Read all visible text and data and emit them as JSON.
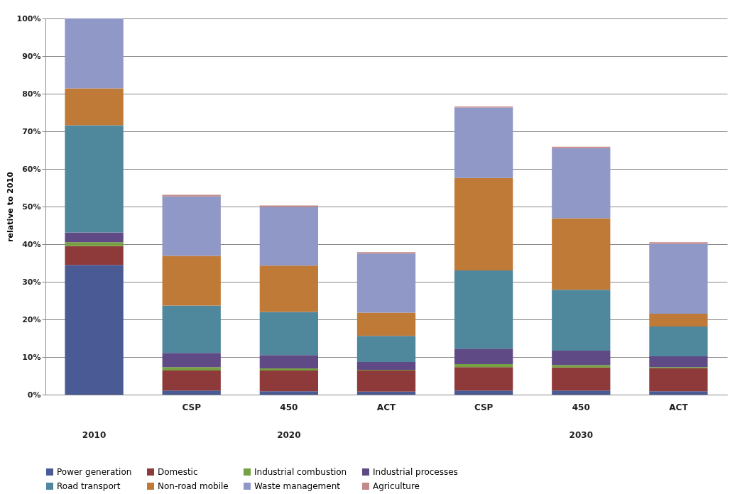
{
  "chart_data": {
    "type": "bar",
    "stacked": true,
    "ylabel": "relative to 2010",
    "categories": [
      null,
      "CSP",
      "450",
      "ACT",
      "CSP",
      "450",
      "ACT"
    ],
    "annotations": [
      "2010",
      "2020",
      "2030"
    ],
    "series": [
      {
        "name": "Power generation",
        "color": "#4a5a94",
        "values": [
          34.5,
          1.1,
          0.9,
          0.8,
          1.1,
          1.1,
          0.9
        ]
      },
      {
        "name": "Domestic",
        "color": "#8e3a3a",
        "values": [
          5.0,
          5.3,
          5.5,
          5.6,
          6.2,
          6.1,
          6.1
        ]
      },
      {
        "name": "Industrial combustion",
        "color": "#77a043",
        "values": [
          1.0,
          0.9,
          0.6,
          0.2,
          0.8,
          0.7,
          0.3
        ]
      },
      {
        "name": "Industrial processes",
        "color": "#5f4a85",
        "values": [
          2.6,
          3.8,
          3.5,
          2.1,
          4.1,
          3.8,
          2.9
        ]
      },
      {
        "name": "Road transport",
        "color": "#4f879c",
        "values": [
          28.5,
          12.6,
          11.5,
          6.9,
          20.8,
          16.2,
          7.9
        ]
      },
      {
        "name": "Non-road mobile",
        "color": "#c07a38",
        "values": [
          9.8,
          13.2,
          12.3,
          6.2,
          24.6,
          19.0,
          3.4
        ]
      },
      {
        "name": "Waste management",
        "color": "#8f98c6",
        "values": [
          18.6,
          15.8,
          15.6,
          15.7,
          18.7,
          18.6,
          18.6
        ]
      },
      {
        "name": "Agriculture",
        "color": "#c48a8a",
        "values": [
          null,
          0.4,
          0.4,
          0.4,
          0.3,
          0.4,
          0.4
        ]
      }
    ],
    "ylim": [
      0,
      100
    ],
    "yticks": [
      {
        "value": 0,
        "label": "0%"
      },
      {
        "value": 10,
        "label": "10%"
      },
      {
        "value": 20,
        "label": "20%"
      },
      {
        "value": 30,
        "label": "30%"
      },
      {
        "value": 40,
        "label": "40%"
      },
      {
        "value": 50,
        "label": "50%"
      },
      {
        "value": 60,
        "label": "60%"
      },
      {
        "value": 70,
        "label": "70%"
      },
      {
        "value": 80,
        "label": "80%"
      },
      {
        "value": 90,
        "label": "90%"
      },
      {
        "value": 100,
        "label": "100%"
      }
    ],
    "grid": "y",
    "legend": "bottom"
  }
}
